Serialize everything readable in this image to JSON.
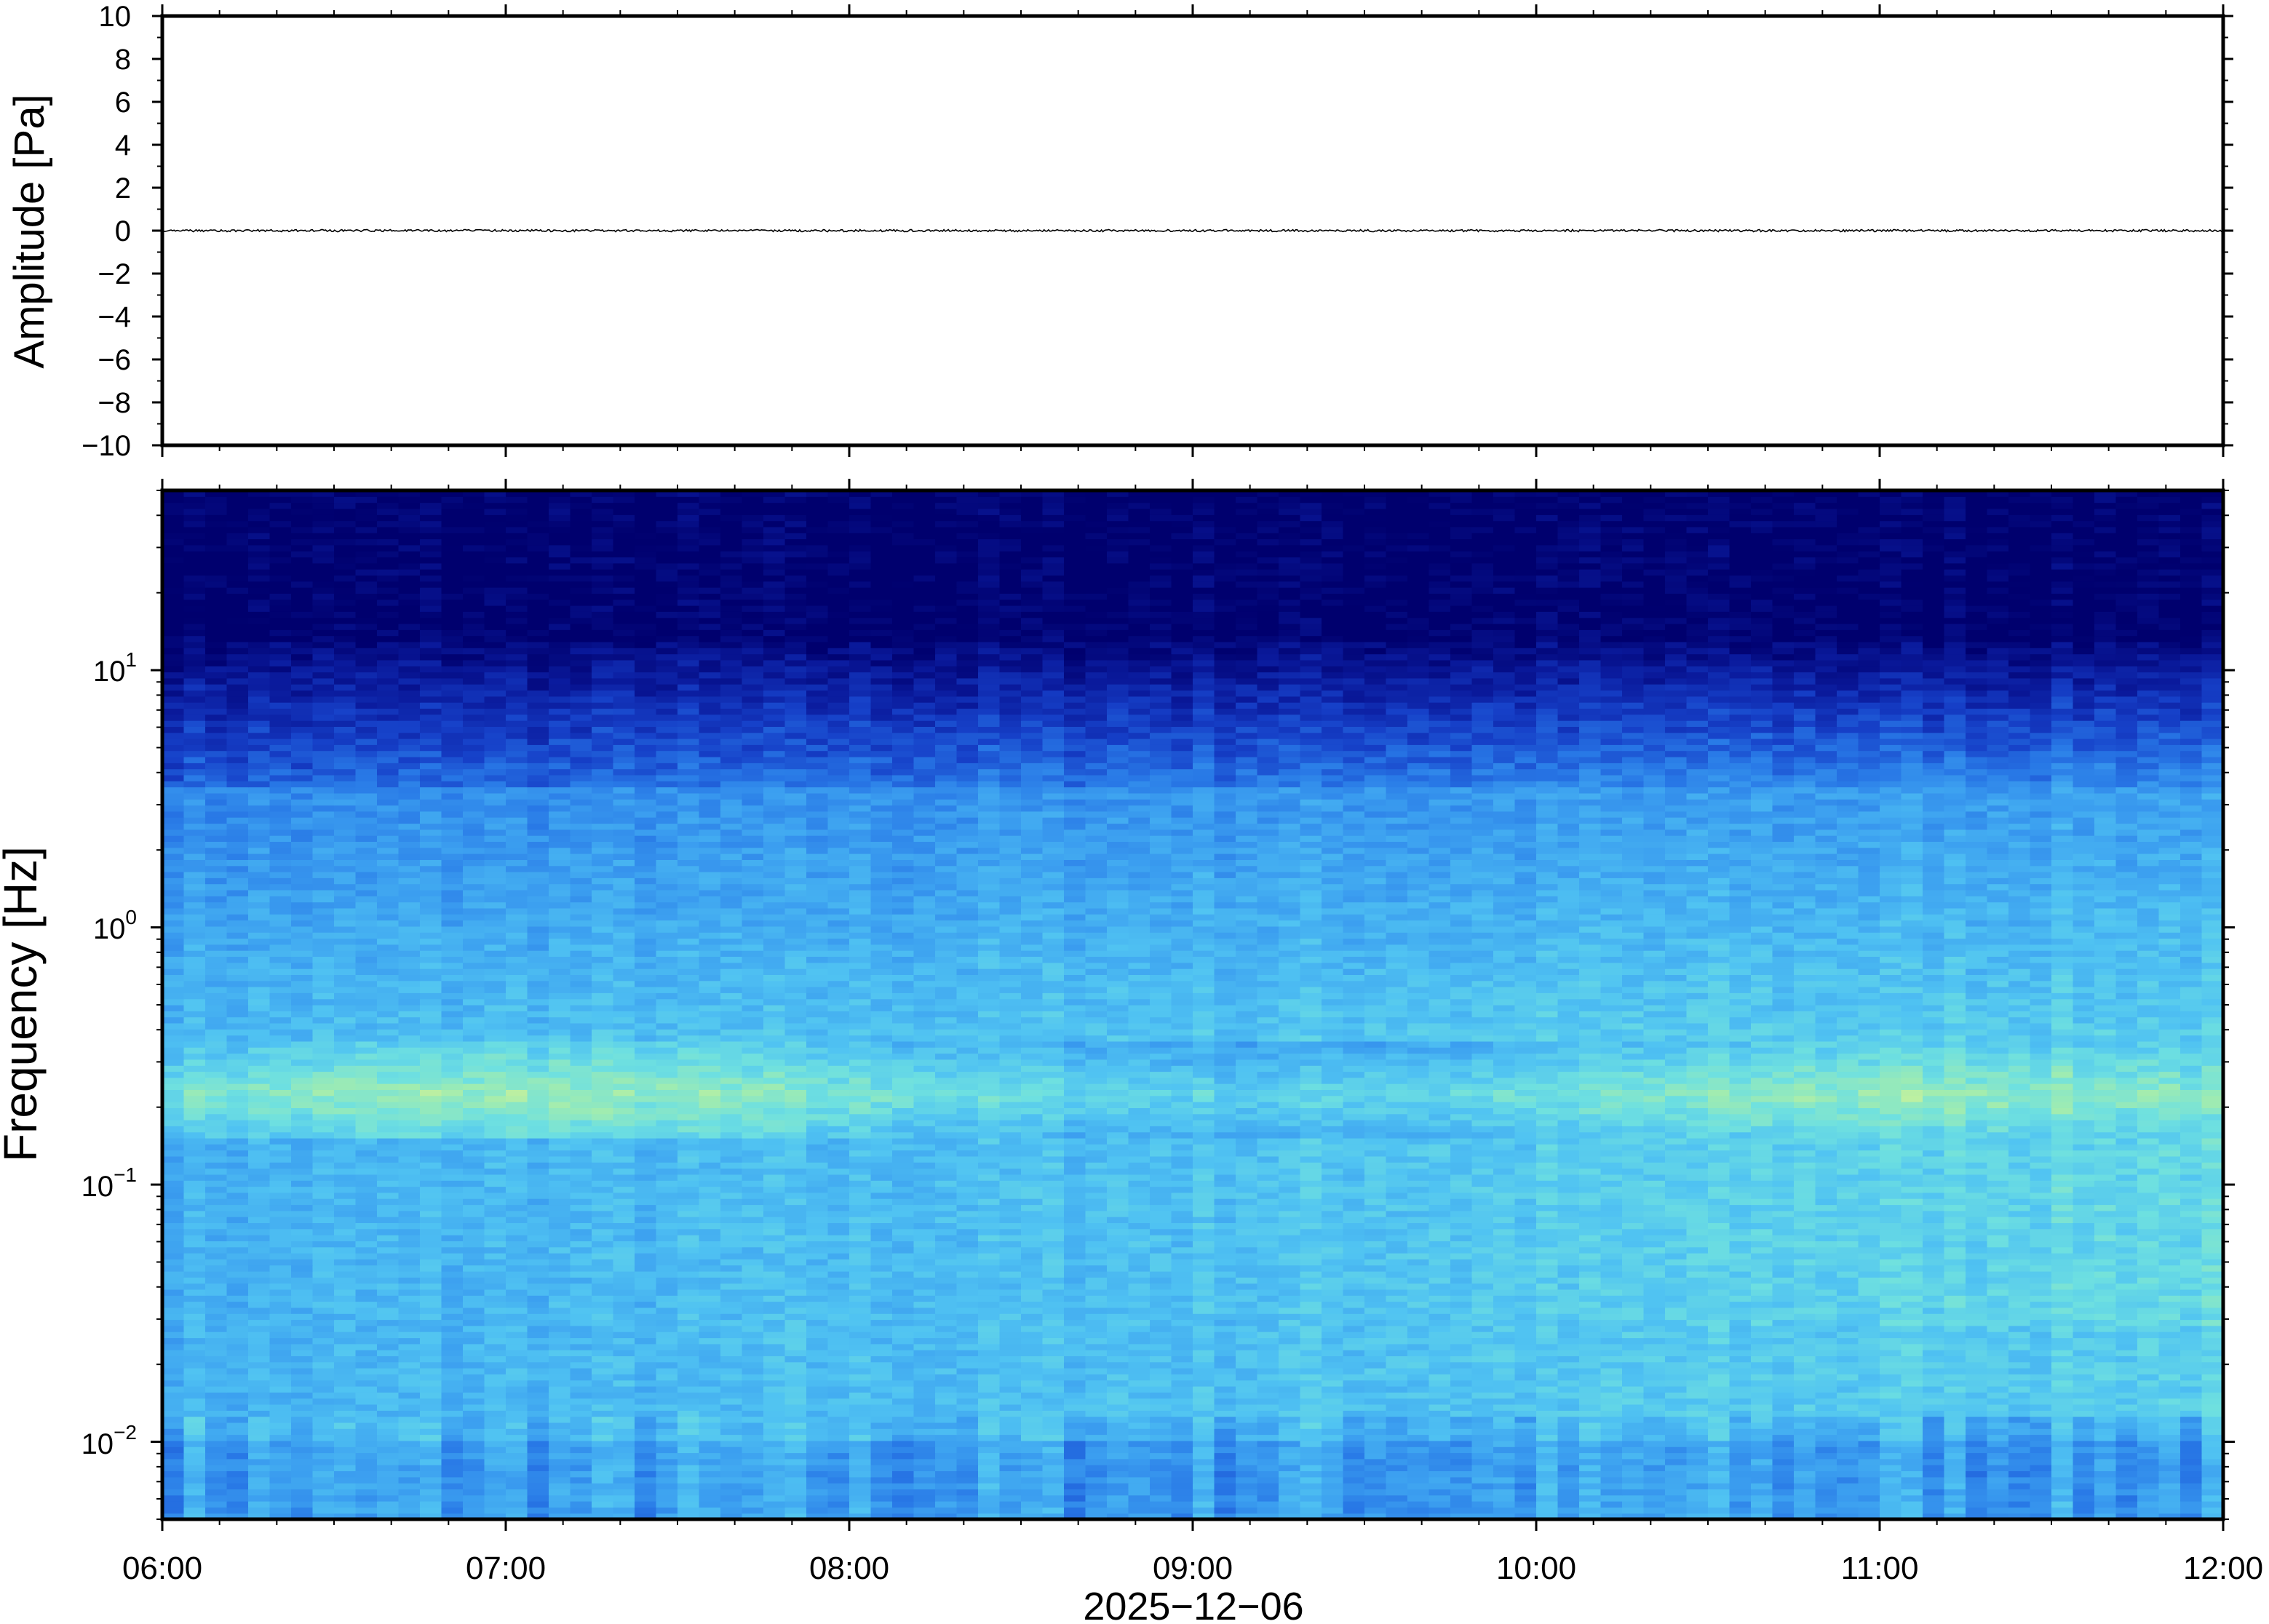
{
  "chart_data": [
    {
      "type": "line",
      "panel": "waveform",
      "ylabel": "Amplitude [Pa]",
      "ylim": [
        -10,
        10
      ],
      "yticks": [
        10,
        8,
        6,
        4,
        2,
        0,
        -2,
        -4,
        -6,
        -8,
        -10
      ],
      "ytick_labels": [
        "10",
        "8",
        "6",
        "4",
        "2",
        "0",
        "−2",
        "−4",
        "−6",
        "−8",
        "−10"
      ],
      "xlim": [
        "06:00",
        "12:00"
      ],
      "series": [
        {
          "values_summary": "trace centred on 0 Pa, peak amplitude below about 0.1 Pa across 06:00–12:00",
          "color": "#000000"
        }
      ]
    },
    {
      "type": "heatmap",
      "panel": "spectrogram",
      "ylabel": "Frequency [Hz]",
      "yscale": "log",
      "ylim": [
        0.005,
        50
      ],
      "yticks": [
        10,
        1,
        0.1,
        0.01
      ],
      "ytick_labels": [
        {
          "base": "10",
          "exp": "1"
        },
        {
          "base": "10",
          "exp": "0"
        },
        {
          "base": "10",
          "exp": "−1"
        },
        {
          "base": "10",
          "exp": "−2"
        }
      ],
      "xlim": [
        "06:00",
        "12:00"
      ],
      "xticks": [
        "06:00",
        "07:00",
        "08:00",
        "09:00",
        "10:00",
        "11:00",
        "12:00"
      ],
      "xlabel": "2025−12−06",
      "colormap": [
        "#00006e",
        "#0a1a9c",
        "#1640c8",
        "#2878e6",
        "#3ca0f0",
        "#50c3f2",
        "#6ee0e0",
        "#a0ecb0",
        "#e6f58c"
      ],
      "features": [
        {
          "band_hz": [
            0.15,
            0.25
          ],
          "level": "high",
          "note": "microseism band, yellow"
        },
        {
          "band_hz": [
            0.02,
            0.06
          ],
          "level": "medium-high",
          "note": "brighter after 09:00"
        },
        {
          "band_hz": [
            8,
            50
          ],
          "level": "low",
          "note": "dark navy"
        }
      ]
    }
  ]
}
